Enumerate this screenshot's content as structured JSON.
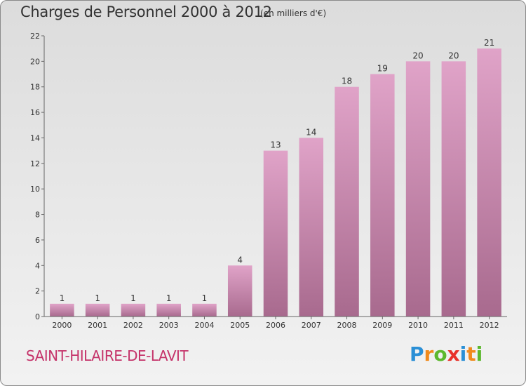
{
  "title": "Charges de Personnel 2000 à 2012",
  "unit_note": "(en milliers d'€)",
  "place_name": "SAINT-HILAIRE-DE-LAVIT",
  "brand": {
    "logo_text": "Proxiti",
    "letters": [
      {
        "char": "P",
        "color": "#2a8fd6"
      },
      {
        "char": "r",
        "color": "#f08a1c"
      },
      {
        "char": "o",
        "color": "#5cb82e"
      },
      {
        "char": "x",
        "color": "#e8312a"
      },
      {
        "char": "i",
        "color": "#2a8fd6"
      },
      {
        "char": "t",
        "color": "#f08a1c"
      },
      {
        "char": "i",
        "color": "#5cb82e"
      }
    ]
  },
  "chart_data": {
    "type": "bar",
    "title": "Charges de Personnel 2000 à 2012",
    "subtitle": "(en milliers d'€)",
    "categories": [
      "2000",
      "2001",
      "2002",
      "2003",
      "2004",
      "2005",
      "2006",
      "2007",
      "2008",
      "2009",
      "2010",
      "2011",
      "2012"
    ],
    "values": [
      1,
      1,
      1,
      1,
      1,
      4,
      13,
      14,
      18,
      19,
      20,
      20,
      21
    ],
    "data_labels": [
      "1",
      "1",
      "1",
      "1",
      "1",
      "4",
      "13",
      "14",
      "18",
      "19",
      "20",
      "20",
      "21"
    ],
    "ylim": [
      0,
      22
    ],
    "yticks": [
      0,
      2,
      4,
      6,
      8,
      10,
      12,
      14,
      16,
      18,
      20,
      22
    ],
    "xlabel": "",
    "ylabel": "",
    "grid": false,
    "bar_color_top": "#e0a3c8",
    "bar_color_bottom": "#a86a8e"
  }
}
